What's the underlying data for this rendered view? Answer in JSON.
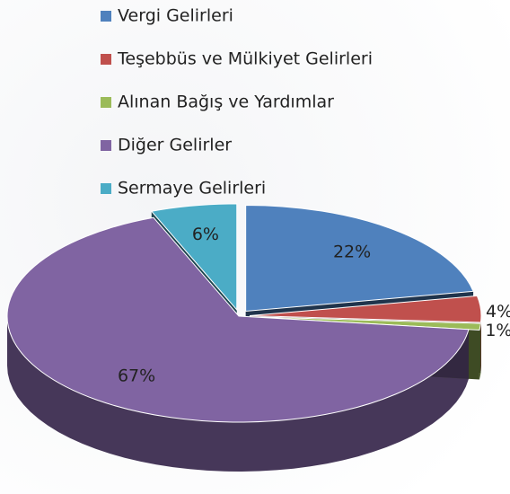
{
  "chart_data": {
    "type": "pie",
    "categories": [
      "Vergi Gelirleri",
      "Teşebbüs ve Mülkiyet Gelirleri",
      "Alınan Bağış ve Yardımlar",
      "Diğer Gelirler",
      "Sermaye Gelirleri"
    ],
    "values": [
      22,
      4,
      1,
      67,
      6
    ],
    "value_labels": [
      "22%",
      "4%",
      "1%",
      "67%",
      "6%"
    ],
    "colors": [
      "#4f81bd",
      "#c0504d",
      "#9bbb59",
      "#8064a2",
      "#4bacc6"
    ],
    "legend": "top"
  }
}
